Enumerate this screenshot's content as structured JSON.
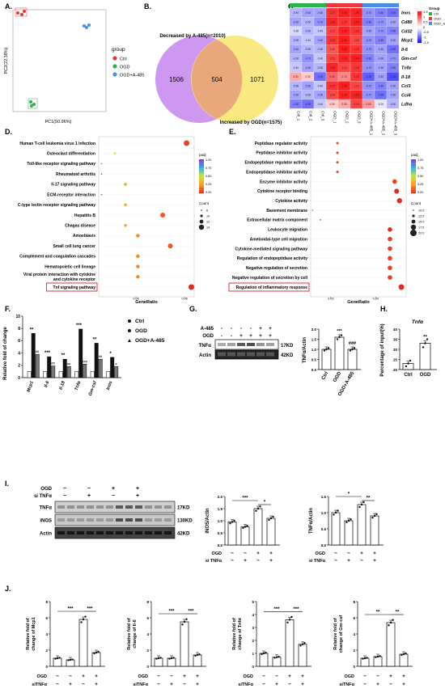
{
  "panels": {
    "A": "A.",
    "B": "B.",
    "C": "C.",
    "D": "D.",
    "E": "E.",
    "F": "F.",
    "G": "G.",
    "H": "H.",
    "I": "I.",
    "J": "J."
  },
  "pca": {
    "xlabel": "PC1(50.96%)",
    "ylabel": "PC2(22.38%)",
    "legend_title": "group",
    "groups": [
      {
        "name": "Ctrl",
        "color": "#e8383d"
      },
      {
        "name": "OGD",
        "color": "#2db34a"
      },
      {
        "name": "OGD+A-485",
        "color": "#4a8fe7"
      }
    ]
  },
  "venn": {
    "left_title": "Decreased by A-485(n=2010)",
    "right_title": "Increased by OGD(n=1575)",
    "left_only": "1506",
    "overlap": "504",
    "right_only": "1071"
  },
  "heatmap": {
    "genes": [
      "Inos",
      "Cd80",
      "Cd32",
      "Mcp1",
      "Il-6",
      "Gm-csf",
      "Tnfα",
      "Il-18",
      "Ccl3",
      "Ccl4",
      "Ldha"
    ],
    "samples": [
      "Ctrl_1",
      "Ctrl_2",
      "Ctrl_3",
      "OGD_1",
      "OGD_2",
      "OGD_3",
      "OGD+A-485_1",
      "OGD+A-485_2",
      "OGD+A-485_3"
    ],
    "legend_title": "Group",
    "legend_groups": [
      "Ctrl",
      "OGD",
      "OGD_A485"
    ],
    "scale_ticks": [
      "1.5",
      "1",
      "0.5",
      "0",
      "-0.5",
      "-1",
      "-1.5"
    ],
    "values": [
      [
        -0.5,
        -0.6,
        -0.6,
        1.2,
        1.4,
        1.3,
        -0.7,
        -0.8,
        -0.9
      ],
      [
        -0.6,
        -0.5,
        -0.7,
        1.3,
        1.2,
        1.4,
        -0.8,
        -0.7,
        -0.6
      ],
      [
        -0.3,
        -0.5,
        -0.4,
        1.1,
        1.3,
        1.2,
        -0.6,
        -0.7,
        -0.8
      ],
      [
        -0.5,
        -0.4,
        -0.6,
        1.2,
        1.5,
        1.1,
        -0.7,
        -0.8,
        -0.6
      ],
      [
        -0.6,
        -0.5,
        -0.5,
        1.0,
        1.6,
        1.2,
        -0.7,
        -0.6,
        -0.9
      ],
      [
        -0.5,
        -0.7,
        -0.4,
        1.1,
        1.3,
        1.4,
        -0.8,
        -0.6,
        -0.7
      ],
      [
        -0.4,
        -0.6,
        -0.5,
        1.3,
        1.1,
        1.2,
        -0.7,
        -0.6,
        -0.8
      ],
      [
        0.5,
        0.3,
        -0.9,
        0.9,
        0.7,
        1.2,
        -1.0,
        -0.6,
        -1.1
      ],
      [
        -0.5,
        -0.6,
        -0.4,
        1.2,
        1.4,
        1.1,
        -0.7,
        -0.8,
        -0.6
      ],
      [
        -0.6,
        -0.5,
        -0.6,
        1.1,
        1.3,
        1.5,
        -0.7,
        -0.9,
        -0.6
      ],
      [
        -0.8,
        -0.9,
        -0.4,
        0.3,
        0.5,
        1.1,
        0.6,
        -0.2,
        -0.5
      ]
    ]
  },
  "dotD": {
    "terms": [
      "Human T-cell leukemia virus 1 infection",
      "Osteoclast differentiation",
      "Toll-like receptor signaling pathway",
      "Rheumatoid arthritis",
      "Il-17 signaling pathway",
      "ECM-receptor interaction",
      "C-type lectin receptor signaling pathway",
      "Hepatitis B",
      "Chagas disease",
      "Amoebiasis",
      "Small cell lung cancer",
      "Complement and coagulation cascades",
      "Hematopoietic cell lineage",
      "Viral protein interaction with cytokine and cytokine receptor",
      "Tnf signaling pathway"
    ],
    "xlabel": "GeneRatio",
    "xticks": [
      "0.04",
      "0.06"
    ],
    "legend_title1": "padj",
    "legend_ticks1": [
      "1.00",
      "0.75",
      "0.50",
      "0.25",
      "0.00"
    ],
    "legend_title2": "Count",
    "legend_sizes": [
      "6",
      "10",
      "12",
      "14"
    ]
  },
  "dotE": {
    "terms": [
      "Peptidase regulator activity",
      "Peptidase inhibitor activity",
      "Endopeptidase regulator activity",
      "Endopeptidase inhibitor activity",
      "Enzyme inhibitor activity",
      "Cytokine receptor binding",
      "Cytokine activity",
      "Basement membrane",
      "Extracellular matrix component",
      "Leukocyte migration",
      "Ameboidal-type cell migration",
      "Cytokine-mediated signaling pathway",
      "Regulation of endopeptidase activity",
      "Negative regulation of secretion",
      "Negative regulation of secretion by cell",
      "Regulation of inflammatory response"
    ],
    "xlabel": "GeneRatio",
    "xticks": [
      "0.03",
      "0.04"
    ],
    "legend_title1": "padj",
    "legend_ticks1": [
      "1.00",
      "0.75",
      "0.50",
      "0.25",
      "0.00"
    ],
    "legend_title2": "Count",
    "legend_sizes": [
      "10.0",
      "12.5",
      "15.0",
      "17.5",
      "20.0"
    ]
  },
  "barF": {
    "ylabel": "Relative fold of change",
    "yticks": [
      "0",
      "2",
      "4",
      "6",
      "8",
      "10"
    ],
    "categories": [
      "Mcp1",
      "Il-6",
      "Il-18",
      "Tnfα",
      "Gm-csf",
      "Inos"
    ],
    "legend": [
      "Ctrl",
      "OGD",
      "OGD+A-485"
    ],
    "ctrl": [
      1,
      1,
      1,
      1,
      1,
      1
    ],
    "ogd": [
      7.2,
      3.4,
      3.0,
      7.9,
      5.6,
      3.3
    ],
    "a485": [
      3.8,
      1.9,
      1.8,
      2.2,
      3.0,
      1.8
    ],
    "stars": [
      "**",
      "***",
      "**",
      "***",
      "**",
      "*"
    ],
    "hashes": [
      "##",
      "##",
      "##",
      "###",
      "##",
      "#"
    ]
  },
  "blotG": {
    "rows": [
      "A-485",
      "OGD"
    ],
    "signs_a485": [
      "-",
      "-",
      "-",
      "-",
      "+",
      "+"
    ],
    "signs_ogd": [
      "-",
      "-",
      "+",
      "+",
      "+",
      "+"
    ],
    "bands": [
      "TNFα",
      "Actin"
    ],
    "kd": [
      "17KD",
      "42KD"
    ]
  },
  "barG": {
    "ylabel": "TNFα/Actin",
    "yticks": [
      "0.0",
      "0.5",
      "1.0",
      "1.5",
      "2.0"
    ],
    "categories": [
      "Ctrl",
      "OGD",
      "OGD+A-485"
    ],
    "values": [
      1.0,
      1.6,
      1.0
    ],
    "stars": [
      "",
      "***",
      "###"
    ]
  },
  "barH": {
    "title": "Tnfα",
    "ylabel": "Percentage of input(%)",
    "yticks": [
      "20",
      "25",
      "30",
      "35",
      "40"
    ],
    "categories": [
      "Ctrl",
      "OGD"
    ],
    "values": [
      23,
      33
    ],
    "stars": [
      "",
      "**"
    ]
  },
  "blotI": {
    "rows": [
      "OGD",
      "si TNFα"
    ],
    "signs_ogd": [
      "−",
      "−",
      "+",
      "+"
    ],
    "signs_si": [
      "−",
      "+",
      "−",
      "+"
    ],
    "bands": [
      "TNFα",
      "iNOS",
      "Actin"
    ],
    "kd": [
      "17KD",
      "130KD",
      "42KD"
    ]
  },
  "barI1": {
    "ylabel": "iNOS/Actin",
    "yticks": [
      "0.0",
      "0.5",
      "1.0",
      "1.5",
      "2.0"
    ],
    "values": [
      0.95,
      0.75,
      1.5,
      1.1
    ],
    "sig": [
      "***",
      "*"
    ],
    "xrows": [
      "OGD",
      "si TNFα"
    ],
    "signs_ogd": [
      "−",
      "−",
      "+",
      "+"
    ],
    "signs_si": [
      "−",
      "+",
      "−",
      "+"
    ]
  },
  "barI2": {
    "ylabel": "TNFα/Actin",
    "yticks": [
      "0.0",
      "0.5",
      "1.0",
      "1.5"
    ],
    "values": [
      1.0,
      0.75,
      1.25,
      0.9
    ],
    "sig": [
      "*",
      "**"
    ],
    "xrows": [
      "OGD",
      "si TNFα"
    ],
    "signs_ogd": [
      "−",
      "−",
      "+",
      "+"
    ],
    "signs_si": [
      "−",
      "+",
      "−",
      "+"
    ]
  },
  "barJ": [
    {
      "ylabel": "Relative fold of change of Mcp1",
      "yticks": [
        "0",
        "2",
        "4",
        "6",
        "8"
      ],
      "ymax": 8,
      "values": [
        1.0,
        0.8,
        5.8,
        1.7
      ],
      "sig": [
        "***",
        "***"
      ]
    },
    {
      "ylabel": "Relative fold of change of Il-6",
      "yticks": [
        "0",
        "2",
        "4",
        "6",
        "8"
      ],
      "ymax": 8,
      "values": [
        1.0,
        1.0,
        5.5,
        1.4
      ],
      "sig": [
        "***",
        "***"
      ]
    },
    {
      "ylabel": "Relative fold of change of Tnfα",
      "yticks": [
        "0",
        "1",
        "2",
        "3",
        "4",
        "5"
      ],
      "ymax": 5,
      "values": [
        1.0,
        0.7,
        3.6,
        1.7
      ],
      "sig": [
        "***",
        "***"
      ]
    },
    {
      "ylabel": "Relative fold of change of Gm-csf",
      "yticks": [
        "0",
        "2",
        "4",
        "6",
        "8"
      ],
      "ymax": 8,
      "values": [
        1.0,
        1.2,
        5.4,
        1.5
      ],
      "sig": [
        "**",
        "**"
      ]
    }
  ],
  "barJ_xrows": {
    "ogd_label": "OGD",
    "si_label": "siTNFα",
    "signs_ogd": [
      "−",
      "−",
      "+",
      "+"
    ],
    "signs_si": [
      "−",
      "+",
      "−",
      "+"
    ]
  }
}
